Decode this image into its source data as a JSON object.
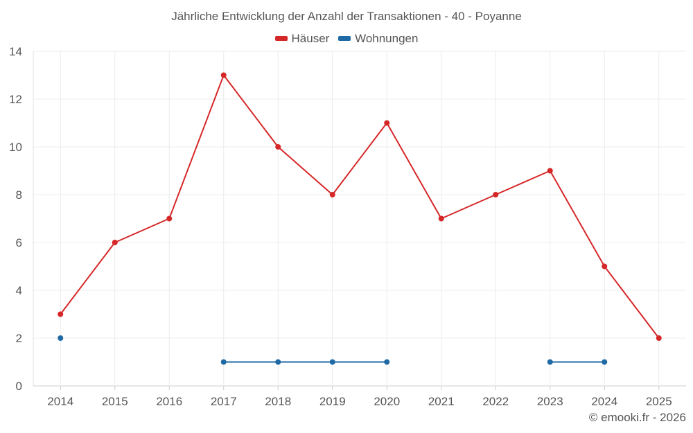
{
  "chart_data": {
    "type": "line",
    "title": "Jährliche Entwicklung der Anzahl der Transaktionen - 40 - Poyanne",
    "categories": [
      "2014",
      "2015",
      "2016",
      "2017",
      "2018",
      "2019",
      "2020",
      "2021",
      "2022",
      "2023",
      "2024",
      "2025"
    ],
    "ylim": [
      0,
      14
    ],
    "yticks": [
      0,
      2,
      4,
      6,
      8,
      10,
      12,
      14
    ],
    "grid": true,
    "legend_position": "top-center",
    "series": [
      {
        "name": "Häuser",
        "color": "#d62728",
        "values": [
          3,
          6,
          7,
          13,
          10,
          8,
          11,
          7,
          8,
          9,
          5,
          2
        ]
      },
      {
        "name": "Wohnungen",
        "color": "#1f6aa5",
        "values": [
          2,
          null,
          null,
          1,
          1,
          1,
          1,
          null,
          null,
          1,
          1,
          null
        ]
      }
    ]
  },
  "footer": "© emooki.fr - 2026"
}
